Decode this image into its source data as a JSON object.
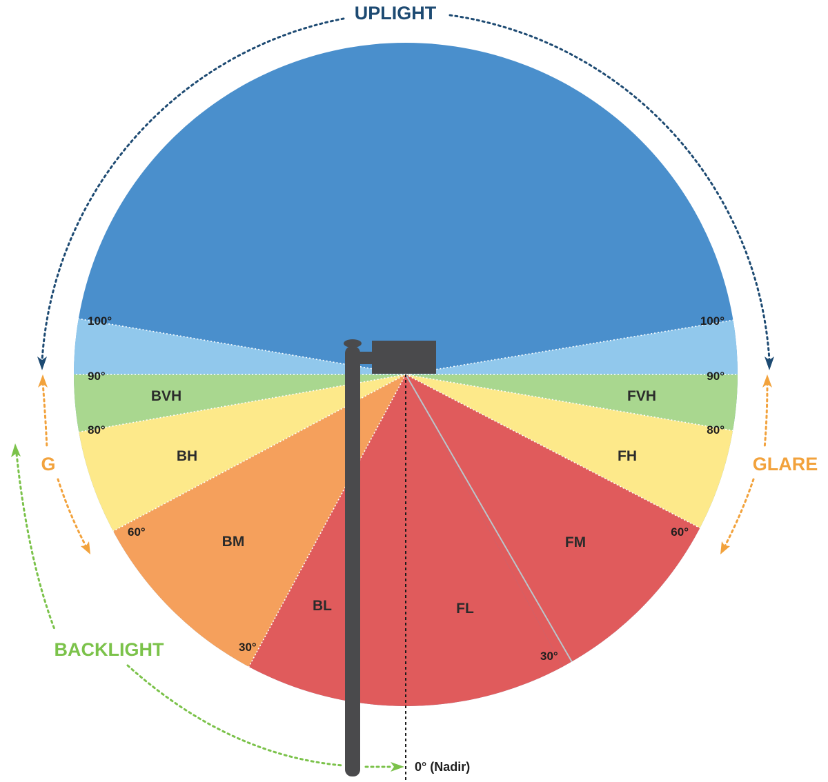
{
  "colors": {
    "uplight": "#4a8fcc",
    "uplight_arrow": "#1d4a72",
    "band_90_100": "#91c8ec",
    "very_high": "#a9d78f",
    "high": "#fde98a",
    "mid_back": "#f5a05c",
    "low_mid": "#e05b5c",
    "glare": "#f2a23c",
    "backlight": "#7bc24a",
    "pole": "#4a4a4c"
  },
  "labels": {
    "uplight": "UPLIGHT",
    "glare": "GLARE",
    "glare_short": "G",
    "backlight": "BACKLIGHT",
    "nadir": "0° (Nadir)"
  },
  "zones": {
    "bvh": "BVH",
    "bh": "BH",
    "bm": "BM",
    "bl": "BL",
    "fvh": "FVH",
    "fh": "FH",
    "fm": "FM",
    "fl": "FL"
  },
  "degrees": {
    "d100": "100°",
    "d90": "90°",
    "d80": "80°",
    "d60": "60°",
    "d30": "30°"
  }
}
